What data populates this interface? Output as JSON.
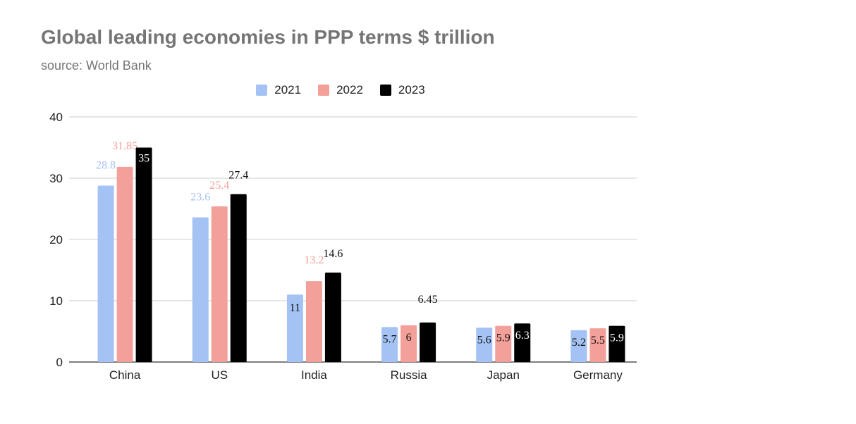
{
  "chart_data": {
    "type": "bar",
    "title": "Global leading economies in PPP terms $ trillion",
    "subtitle": "source: World Bank",
    "categories": [
      "China",
      "US",
      "India",
      "Russia",
      "Japan",
      "Germany"
    ],
    "series": [
      {
        "name": "2021",
        "color": "#a4c2f4",
        "values": [
          28.8,
          23.6,
          11,
          5.7,
          5.6,
          5.2
        ],
        "labels": [
          "28.8",
          "23.6",
          "11",
          "5.7",
          "5.6",
          "5.2"
        ]
      },
      {
        "name": "2022",
        "color": "#f4a09a",
        "values": [
          31.85,
          25.4,
          13.2,
          6,
          5.9,
          5.5
        ],
        "labels": [
          "31.85",
          "25.4",
          "13.2",
          "6",
          "5.9",
          "5.5"
        ]
      },
      {
        "name": "2023",
        "color": "#000000",
        "values": [
          35,
          27.4,
          14.6,
          6.45,
          6.3,
          5.9
        ],
        "labels": [
          "35",
          "27.4",
          "14.6",
          "6.45",
          "6.3",
          "5.9"
        ]
      }
    ],
    "yticks": [
      "0",
      "10",
      "20",
      "30",
      "40"
    ],
    "ylim": [
      0,
      40
    ],
    "grid": true,
    "legend_position": "top-center"
  }
}
